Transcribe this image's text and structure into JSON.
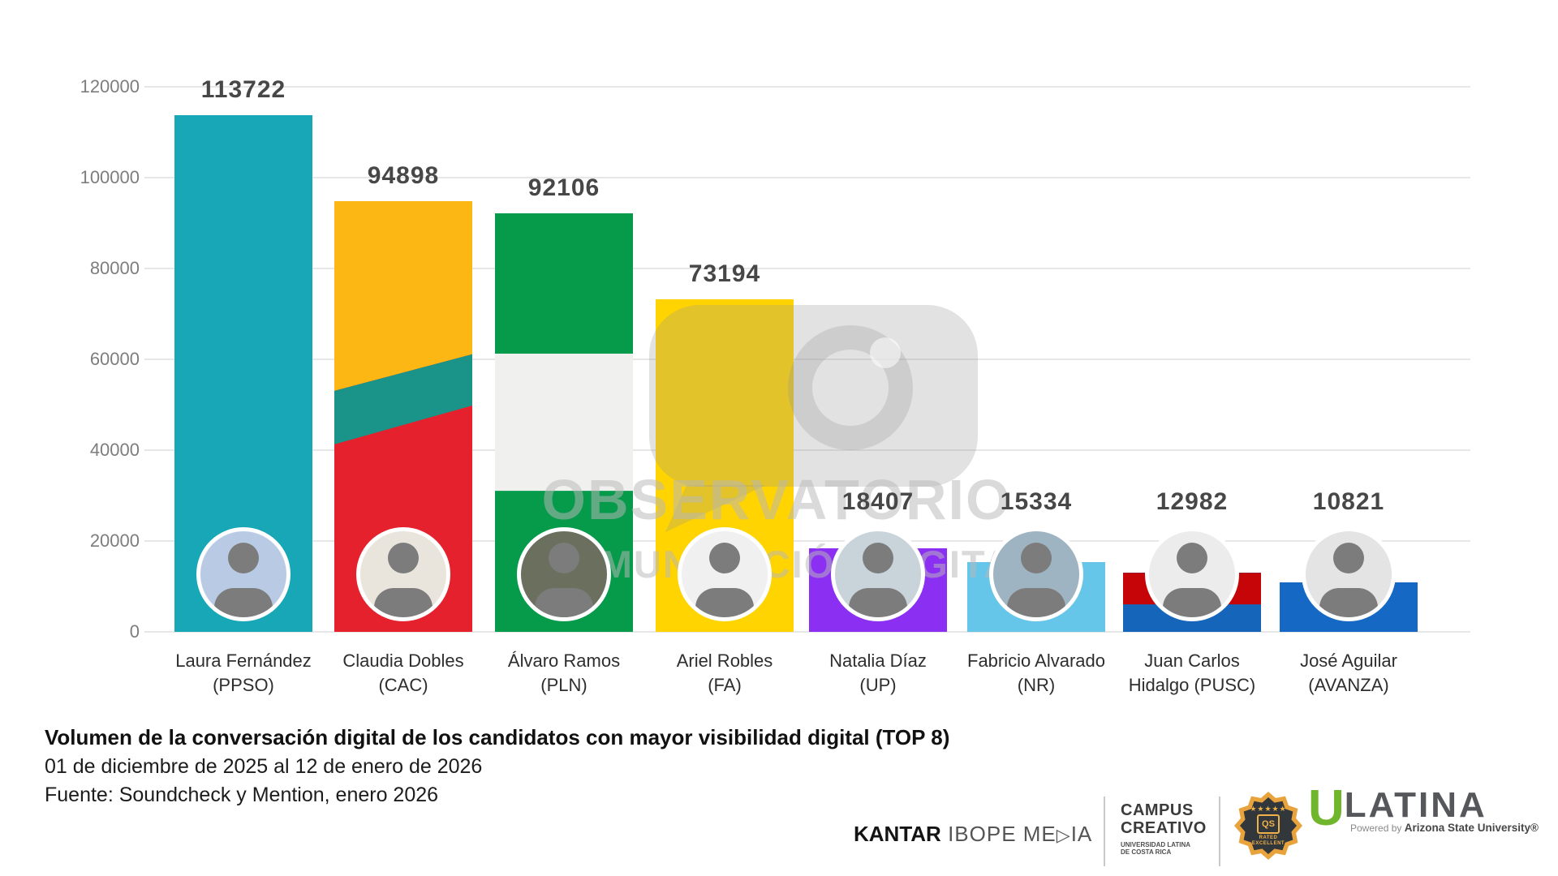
{
  "chart_data": {
    "type": "bar",
    "title": "Volumen de la conversación digital de los candidatos con mayor visibilidad digital (TOP 8)",
    "subtitle": "01 de diciembre de 2025 al 12 de enero de 2026",
    "source": "Fuente: Soundcheck y Mention, enero 2026",
    "categories": [
      "Laura Fernández (PPSO)",
      "Claudia Dobles (CAC)",
      "Álvaro Ramos (PLN)",
      "Ariel Robles (FA)",
      "Natalia Díaz (UP)",
      "Fabricio Alvarado (NR)",
      "Juan Carlos Hidalgo (PUSC)",
      "José Aguilar (AVANZA)"
    ],
    "values": [
      113722,
      94898,
      92106,
      73194,
      18407,
      15334,
      12982,
      10821
    ],
    "ylim": [
      0,
      120000
    ],
    "ytick_step": 20000,
    "grid": "horizontal",
    "legend": "none",
    "y_ticks": [
      {
        "label": "120000",
        "value": 120000
      },
      {
        "label": "100000",
        "value": 100000
      },
      {
        "label": "80000",
        "value": 80000
      },
      {
        "label": "60000",
        "value": 60000
      },
      {
        "label": "40000",
        "value": 40000
      },
      {
        "label": "20000",
        "value": 20000
      },
      {
        "label": "0",
        "value": 0
      }
    ],
    "bars": [
      {
        "candidate": "Laura Fernández",
        "party": "PPSO",
        "value": 113722,
        "value_label": "113722",
        "name_lines": [
          "Laura Fernández",
          "(PPSO)"
        ],
        "avatar_bg": "#b9cbe4",
        "segments": [
          {
            "color": "#18a7b7"
          }
        ]
      },
      {
        "candidate": "Claudia Dobles",
        "party": "CAC",
        "value": 94898,
        "value_label": "94898",
        "name_lines": [
          "Claudia Dobles",
          "(CAC)"
        ],
        "avatar_bg": "#e9e4dc",
        "segments": [
          {
            "color": "#e6212e"
          },
          {
            "color": "#fdb714",
            "poly": [
              [
                0,
                0
              ],
              [
                100,
                0
              ],
              [
                100,
                35.6
              ],
              [
                0,
                44.1
              ]
            ]
          },
          {
            "color": "#1a9488",
            "poly": [
              [
                0,
                44.1
              ],
              [
                100,
                35.6
              ],
              [
                100,
                47.5
              ],
              [
                0,
                56.5
              ]
            ]
          }
        ]
      },
      {
        "candidate": "Álvaro Ramos",
        "party": "PLN",
        "value": 92106,
        "value_label": "92106",
        "name_lines": [
          "Álvaro Ramos",
          "(PLN)"
        ],
        "avatar_bg": "#6b6f5e",
        "segments": [
          {
            "color": "#069a4b"
          },
          {
            "color": "#f0f0ee",
            "poly": [
              [
                0,
                33.5
              ],
              [
                100,
                33.5
              ],
              [
                100,
                66.3
              ],
              [
                0,
                66.3
              ]
            ]
          }
        ]
      },
      {
        "candidate": "Ariel Robles",
        "party": "FA",
        "value": 73194,
        "value_label": "73194",
        "name_lines": [
          "Ariel Robles",
          "(FA)"
        ],
        "avatar_bg": "#f0f0f0",
        "segments": [
          {
            "color": "#ffd400"
          }
        ]
      },
      {
        "candidate": "Natalia Díaz",
        "party": "UP",
        "value": 18407,
        "value_label": "18407",
        "name_lines": [
          "Natalia Díaz",
          "(UP)"
        ],
        "avatar_bg": "#c9d4da",
        "segments": [
          {
            "color": "#8b2ff2"
          }
        ]
      },
      {
        "candidate": "Fabricio Alvarado",
        "party": "NR",
        "value": 15334,
        "value_label": "15334",
        "name_lines": [
          "Fabricio Alvarado",
          "(NR)"
        ],
        "avatar_bg": "#9fb4c2",
        "segments": [
          {
            "color": "#66c6e9"
          }
        ]
      },
      {
        "candidate": "Juan Carlos Hidalgo",
        "party": "PUSC",
        "value": 12982,
        "value_label": "12982",
        "name_lines": [
          "Juan Carlos",
          "Hidalgo (PUSC)"
        ],
        "avatar_bg": "#ececec",
        "segments": [
          {
            "color": "#1566bb"
          },
          {
            "color": "#c60508",
            "poly": [
              [
                0,
                0
              ],
              [
                100,
                0
              ],
              [
                100,
                53.4
              ],
              [
                0,
                53.4
              ]
            ]
          }
        ]
      },
      {
        "candidate": "José Aguilar",
        "party": "AVANZA",
        "value": 10821,
        "value_label": "10821",
        "name_lines": [
          "José Aguilar",
          "(AVANZA)"
        ],
        "avatar_bg": "#e4e4e4",
        "segments": [
          {
            "color": "#1569c5"
          }
        ]
      }
    ]
  },
  "watermark": {
    "line1": "OBSERVATORIO",
    "line2": "COMUNICACIÓN DIGITAL",
    "icon": "speech-bubble-eye"
  },
  "footer": {
    "title": "Volumen de la conversación digital de los candidatos con mayor visibilidad digital (TOP 8)",
    "subtitle": "01 de diciembre de 2025 al 12 de enero de 2026",
    "source": "Fuente: Soundcheck y Mention, enero 2026"
  },
  "logos": {
    "kantar": {
      "bold": "KANTAR",
      "mid": " IBOPE ME",
      "d_glyph": "▷",
      "end": "IA"
    },
    "campus": {
      "line1": "CAMPUS",
      "line2": "CREATIVO",
      "sub1": "UNIVERSIDAD LATINA",
      "sub2": "DE COSTA RICA"
    },
    "qs_badge": {
      "stars": "★★★★★",
      "qs": "QS",
      "rated": "RATED",
      "excellent": "EXCELLENT"
    },
    "ulatina": {
      "u": "U",
      "rest": "LATINA",
      "powered_prefix": "Powered by ",
      "powered_brand": "Arizona State University®"
    }
  }
}
